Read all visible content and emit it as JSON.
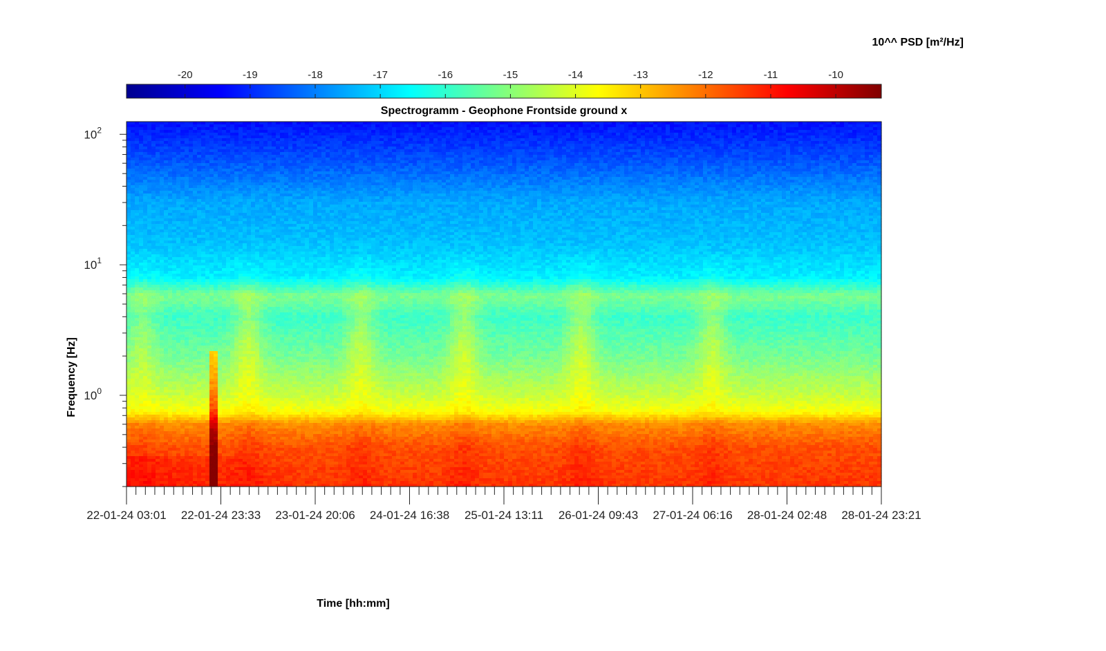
{
  "chart_data": {
    "type": "heatmap",
    "title": "Spectrogramm - Geophone Frontside ground x",
    "xlabel": "Time [hh:mm]",
    "ylabel": "Frequency [Hz]",
    "colorbar": {
      "label": "10^^ PSD [m²/Hz]",
      "ticks": [
        -20,
        -19,
        -18,
        -17,
        -16,
        -15,
        -14,
        -13,
        -12,
        -11,
        -10
      ],
      "range": [
        -20.9,
        -9.3
      ],
      "colormap": "jet",
      "position": "top"
    },
    "x": {
      "tick_labels": [
        "22-01-24 03:01",
        "22-01-24 23:33",
        "23-01-24 20:06",
        "24-01-24 16:38",
        "25-01-24 13:11",
        "26-01-24 09:43",
        "27-01-24 06:16",
        "28-01-24 02:48",
        "28-01-24 23:21"
      ],
      "range": [
        "22-01-24 03:01",
        "28-01-24 23:21"
      ]
    },
    "y": {
      "scale": "log",
      "range": [
        0.2,
        125
      ],
      "tick_values": [
        1,
        10,
        100
      ],
      "tick_labels": [
        {
          "base": "10",
          "exp": "0"
        },
        {
          "base": "10",
          "exp": "1"
        },
        {
          "base": "10",
          "exp": "2"
        }
      ]
    },
    "psd_profile": [
      {
        "freq": 0.2,
        "log10_psd": -11.3
      },
      {
        "freq": 0.4,
        "log10_psd": -11.6
      },
      {
        "freq": 0.6,
        "log10_psd": -12.3
      },
      {
        "freq": 0.75,
        "log10_psd": -13.7
      },
      {
        "freq": 1.0,
        "log10_psd": -14.3
      },
      {
        "freq": 2.0,
        "log10_psd": -15.3
      },
      {
        "freq": 4.0,
        "log10_psd": -15.9
      },
      {
        "freq": 5.8,
        "log10_psd": -15.2
      },
      {
        "freq": 8.0,
        "log10_psd": -16.7
      },
      {
        "freq": 15.0,
        "log10_psd": -17.3
      },
      {
        "freq": 30.0,
        "log10_psd": -17.6
      },
      {
        "freq": 60.0,
        "log10_psd": -18.5
      },
      {
        "freq": 125.0,
        "log10_psd": -19.3
      }
    ],
    "activity_windows": [
      {
        "center": "22-01-24 06:30",
        "strength": 0.7
      },
      {
        "center": "23-01-24 05:30",
        "strength": 1.0
      },
      {
        "center": "24-01-24 06:00",
        "strength": 0.9
      },
      {
        "center": "25-01-24 04:30",
        "strength": 1.0
      },
      {
        "center": "26-01-24 06:00",
        "strength": 1.0
      },
      {
        "center": "27-01-24 10:30",
        "strength": 0.9
      }
    ],
    "transient_events": [
      {
        "time": "22-01-24 22:00",
        "freq_max": 2.2
      }
    ],
    "grid": false
  }
}
